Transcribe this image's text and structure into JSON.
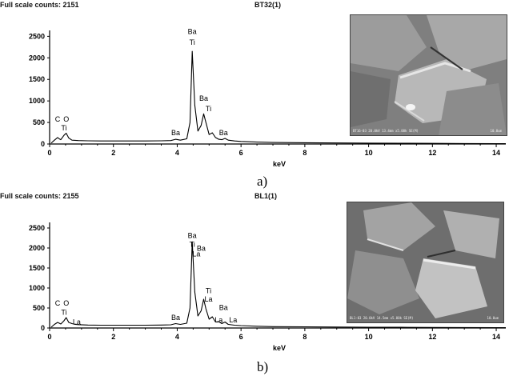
{
  "panels": [
    {
      "header_counts": "Full scale counts: 2151",
      "header_sample": "BT32(1)",
      "caption": "a)",
      "sem_label": "BT16-03 20.0kV 13.4mm x5.00k SE(M)",
      "sem_scale": "10.0um"
    },
    {
      "header_counts": "Full scale counts: 2155",
      "header_sample": "BL1(1)",
      "caption": "b)",
      "sem_label": "BL1-03 20.0kV 14.5mm x5.00k SE(M)",
      "sem_scale": "10.0um"
    }
  ],
  "chart_data": [
    {
      "type": "line",
      "xlabel": "keV",
      "ylabel": "",
      "xlim": [
        0,
        14.3
      ],
      "ylim": [
        0,
        2600
      ],
      "xticks": [
        "0",
        "2",
        "4",
        "6",
        "8",
        "10",
        "12",
        "14"
      ],
      "yticks": [
        "0",
        "500",
        "1000",
        "1500",
        "2000",
        "2500"
      ],
      "grid": false,
      "series": [
        {
          "x": [
            0.05,
            0.15,
            0.25,
            0.3,
            0.35,
            0.45,
            0.52,
            0.6,
            0.7,
            0.9,
            1.2,
            1.6,
            2.0,
            2.5,
            3.0,
            3.5,
            3.8,
            3.95,
            4.1,
            4.3,
            4.4,
            4.47,
            4.55,
            4.65,
            4.75,
            4.83,
            4.9,
            5.0,
            5.1,
            5.2,
            5.3,
            5.4,
            5.5,
            5.6,
            5.8,
            6.0,
            6.5,
            7.0,
            8.0,
            9.0,
            10.0,
            11.0,
            12.0,
            13.0,
            14.0,
            14.3
          ],
          "y": [
            20,
            90,
            150,
            120,
            100,
            200,
            250,
            140,
            90,
            80,
            75,
            70,
            70,
            70,
            70,
            75,
            80,
            110,
            90,
            120,
            500,
            2151,
            900,
            300,
            430,
            700,
            500,
            220,
            260,
            150,
            110,
            100,
            130,
            90,
            70,
            60,
            45,
            35,
            30,
            25,
            20,
            18,
            15,
            12,
            10,
            10
          ]
        }
      ],
      "annotations": [
        {
          "text": "C",
          "x": 0.25,
          "y": 520
        },
        {
          "text": "O",
          "x": 0.52,
          "y": 520
        },
        {
          "text": "Ti",
          "x": 0.45,
          "y": 320
        },
        {
          "text": "Ba",
          "x": 3.95,
          "y": 200
        },
        {
          "text": "Ba",
          "x": 4.47,
          "y": 2550
        },
        {
          "text": "Ti",
          "x": 4.47,
          "y": 2300
        },
        {
          "text": "Ba",
          "x": 4.83,
          "y": 1000
        },
        {
          "text": "Ti",
          "x": 4.98,
          "y": 760
        },
        {
          "text": "Ba",
          "x": 5.45,
          "y": 200
        }
      ]
    },
    {
      "type": "line",
      "xlabel": "keV",
      "ylabel": "",
      "xlim": [
        0,
        14.3
      ],
      "ylim": [
        0,
        2600
      ],
      "xticks": [
        "0",
        "2",
        "4",
        "6",
        "8",
        "10",
        "12",
        "14"
      ],
      "yticks": [
        "0",
        "500",
        "1000",
        "1500",
        "2000",
        "2500"
      ],
      "grid": false,
      "series": [
        {
          "x": [
            0.05,
            0.15,
            0.25,
            0.3,
            0.35,
            0.45,
            0.52,
            0.6,
            0.7,
            0.8,
            0.9,
            1.2,
            1.6,
            2.0,
            2.5,
            3.0,
            3.5,
            3.8,
            3.95,
            4.1,
            4.3,
            4.4,
            4.47,
            4.55,
            4.65,
            4.75,
            4.83,
            4.9,
            5.0,
            5.1,
            5.2,
            5.3,
            5.4,
            5.5,
            5.6,
            5.8,
            6.0,
            6.5,
            7.0,
            8.0,
            9.0,
            10.0,
            11.0,
            12.0,
            13.0,
            14.0,
            14.3
          ],
          "y": [
            20,
            90,
            140,
            120,
            100,
            180,
            260,
            140,
            110,
            90,
            85,
            75,
            70,
            70,
            70,
            70,
            75,
            80,
            110,
            90,
            120,
            500,
            2155,
            900,
            300,
            430,
            720,
            480,
            220,
            280,
            150,
            160,
            110,
            150,
            90,
            70,
            60,
            45,
            35,
            30,
            25,
            20,
            18,
            15,
            12,
            10,
            10
          ]
        }
      ],
      "annotations": [
        {
          "text": "C",
          "x": 0.25,
          "y": 560
        },
        {
          "text": "O",
          "x": 0.52,
          "y": 560
        },
        {
          "text": "Ti",
          "x": 0.45,
          "y": 330
        },
        {
          "text": "La",
          "x": 0.85,
          "y": 90
        },
        {
          "text": "Ba",
          "x": 3.95,
          "y": 200
        },
        {
          "text": "Ba",
          "x": 4.47,
          "y": 2250
        },
        {
          "text": "Ti",
          "x": 4.47,
          "y": 2030
        },
        {
          "text": "Ba",
          "x": 4.75,
          "y": 1930
        },
        {
          "text": "La",
          "x": 4.6,
          "y": 1790
        },
        {
          "text": "Ti",
          "x": 4.98,
          "y": 870
        },
        {
          "text": "La",
          "x": 4.98,
          "y": 660
        },
        {
          "text": "Ba",
          "x": 5.45,
          "y": 450
        },
        {
          "text": "La",
          "x": 5.3,
          "y": 140
        },
        {
          "text": "La",
          "x": 5.75,
          "y": 140
        }
      ]
    }
  ]
}
